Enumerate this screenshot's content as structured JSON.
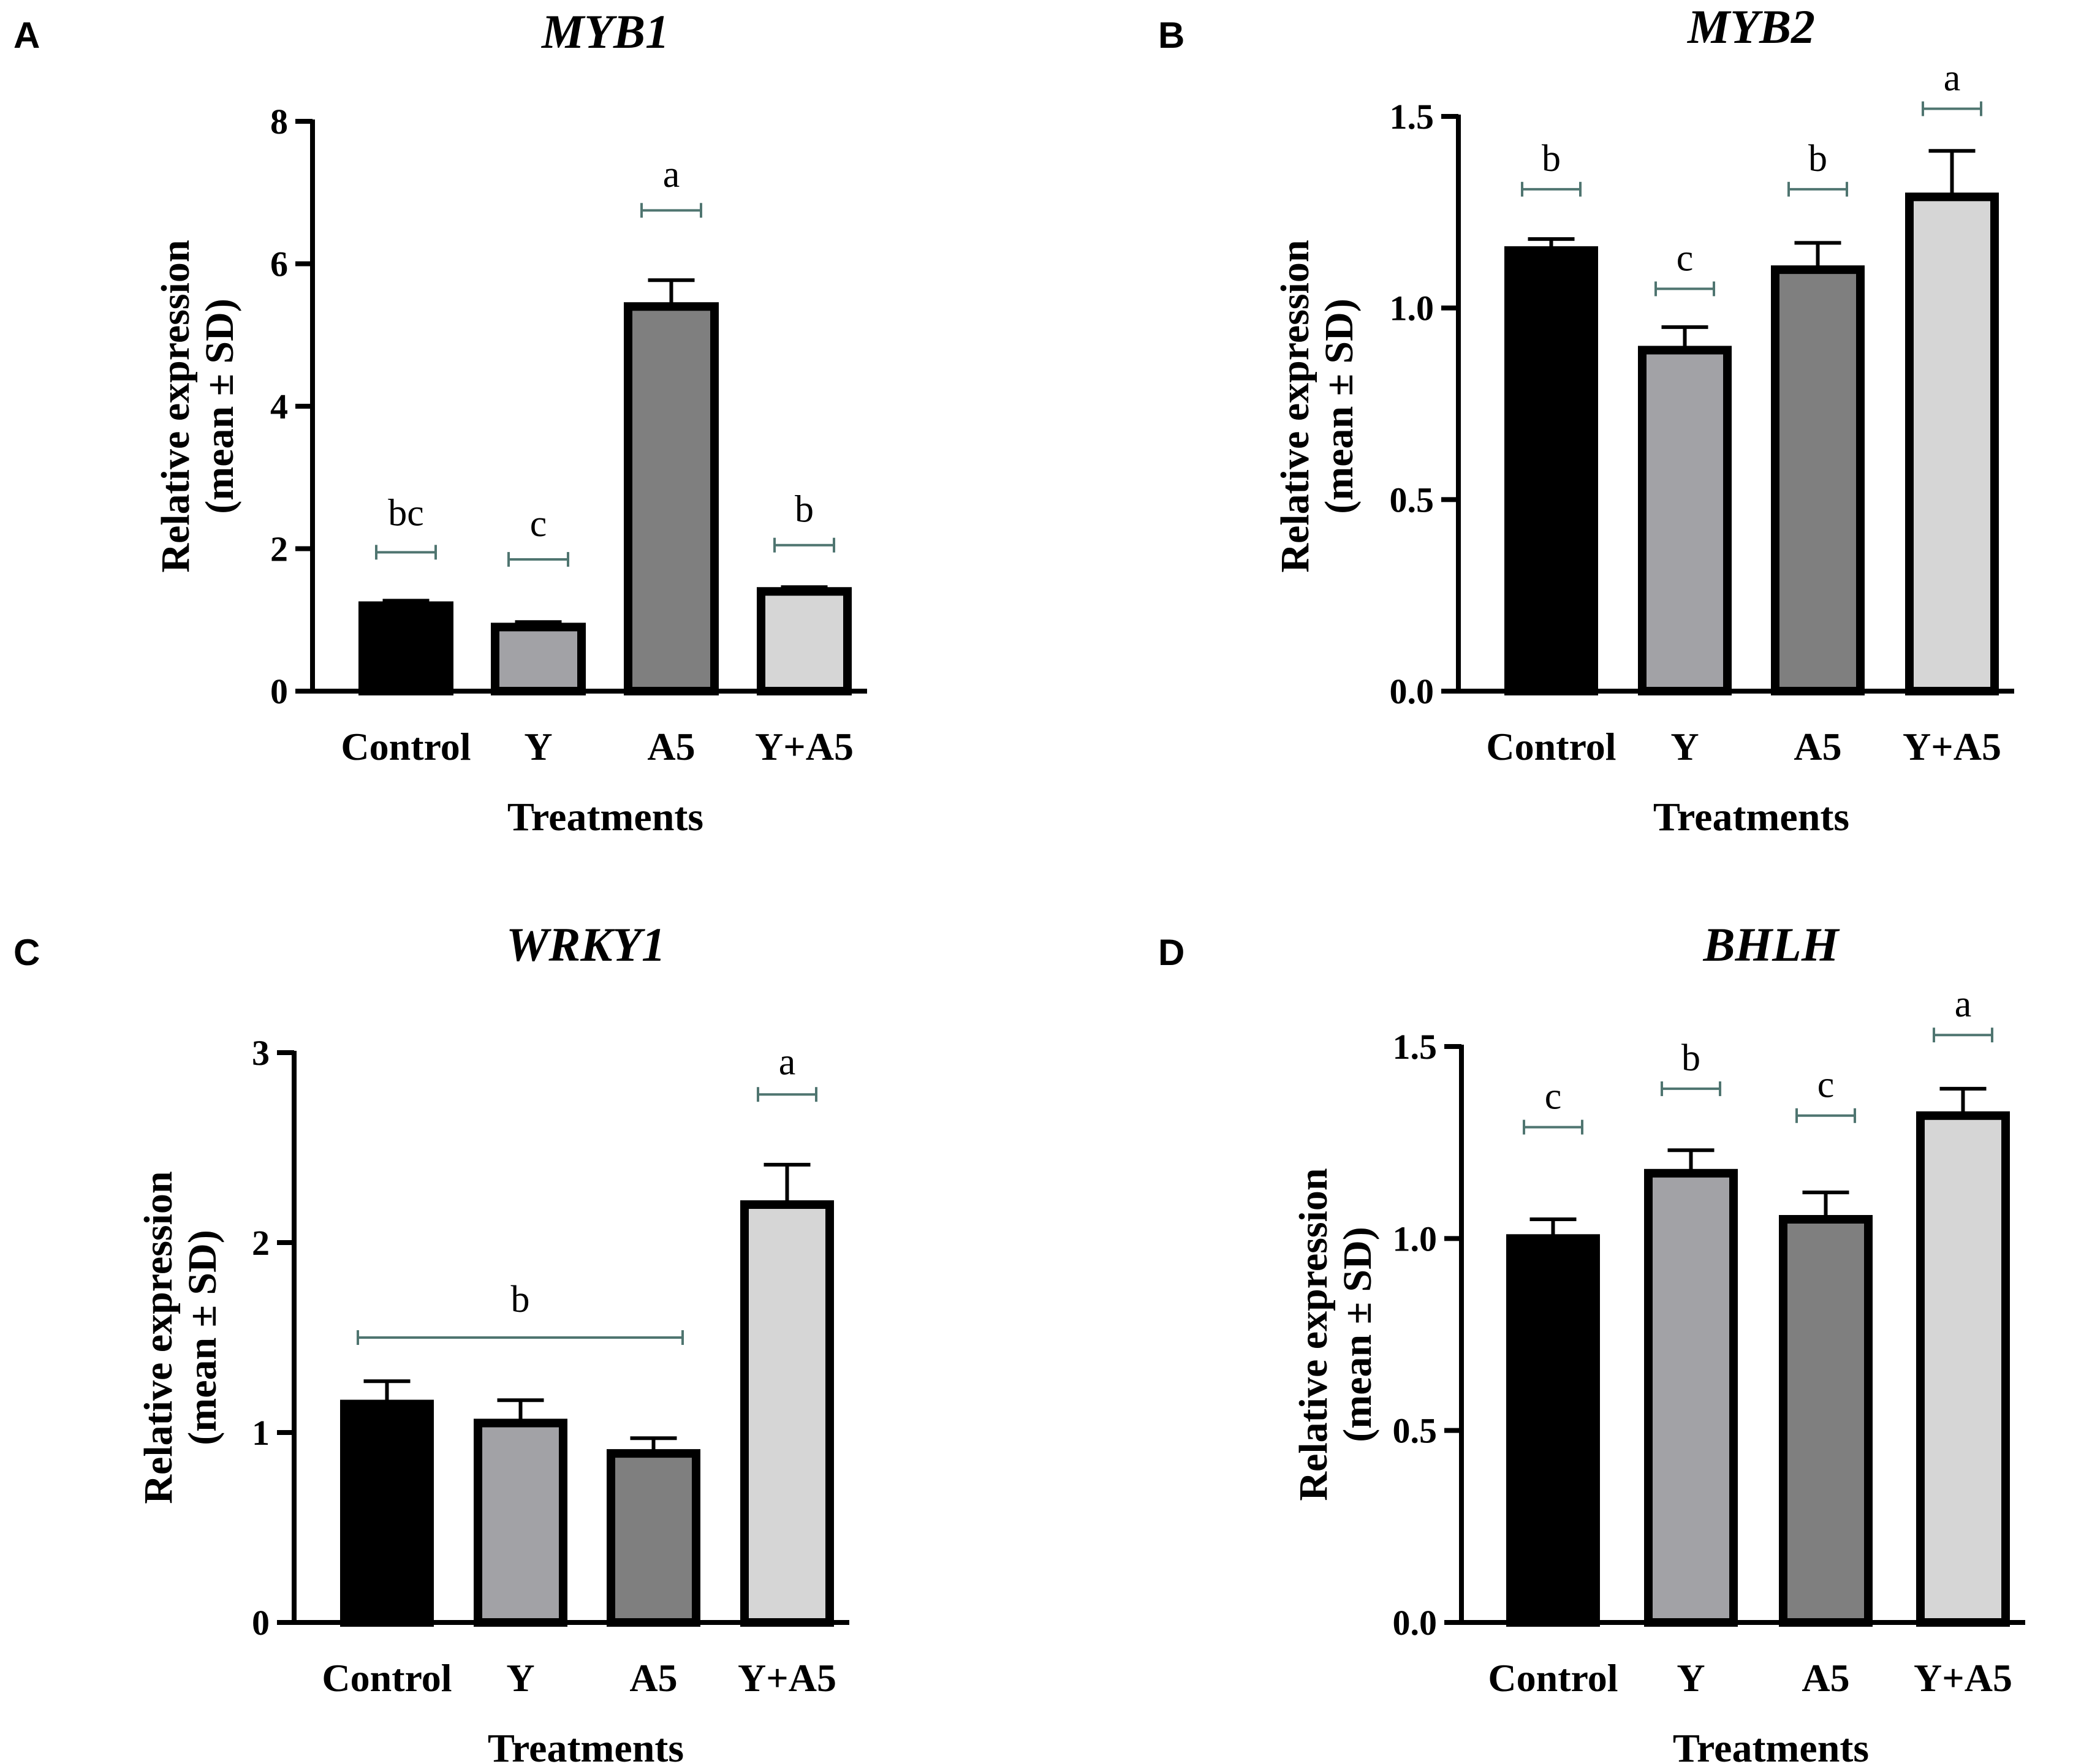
{
  "colors": {
    "axis": "#000000",
    "bracket": "#4f7570",
    "bar_fills": [
      "#000000",
      "#a2a2a6",
      "#7f7f7f",
      "#d6d6d6"
    ]
  },
  "chart_data": [
    {
      "panel": "A",
      "type": "bar",
      "title": "MYB1",
      "categories": [
        "Control",
        "Y",
        "A5",
        "Y+A5"
      ],
      "values": [
        1.2,
        0.9,
        5.4,
        1.4
      ],
      "errors": [
        0.07,
        0.07,
        0.37,
        0.06
      ],
      "xlabel": "Treatments",
      "ylabel_line1": "Relative expression",
      "ylabel_line2": "(mean ± SD)",
      "ylim": [
        0,
        8
      ],
      "yticks": [
        0,
        2,
        4,
        6,
        8
      ],
      "ytick_labels": [
        "0",
        "2",
        "4",
        "6",
        "8"
      ],
      "significance": [
        {
          "label": "bc",
          "from": 0,
          "to": 0,
          "level": 1.95,
          "text_level": 2.5
        },
        {
          "label": "c",
          "from": 1,
          "to": 1,
          "level": 1.85,
          "text_level": 2.35
        },
        {
          "label": "a",
          "from": 2,
          "to": 2,
          "level": 6.75,
          "text_level": 7.25
        },
        {
          "label": "b",
          "from": 3,
          "to": 3,
          "level": 2.05,
          "text_level": 2.55
        }
      ]
    },
    {
      "panel": "B",
      "type": "bar",
      "title": "MYB2",
      "categories": [
        "Control",
        "Y",
        "A5",
        "Y+A5"
      ],
      "values": [
        1.15,
        0.89,
        1.1,
        1.29
      ],
      "errors": [
        0.03,
        0.06,
        0.07,
        0.12
      ],
      "xlabel": "Treatments",
      "ylabel_line1": "Relative expression",
      "ylabel_line2": "(mean ± SD)",
      "ylim": [
        0,
        1.5
      ],
      "yticks": [
        0,
        0.5,
        1.0,
        1.5
      ],
      "ytick_labels": [
        "0.0",
        "0.5",
        "1.0",
        "1.5"
      ],
      "significance": [
        {
          "label": "b",
          "from": 0,
          "to": 0,
          "level": 1.31,
          "text_level": 1.39
        },
        {
          "label": "c",
          "from": 1,
          "to": 1,
          "level": 1.05,
          "text_level": 1.13
        },
        {
          "label": "b",
          "from": 2,
          "to": 2,
          "level": 1.31,
          "text_level": 1.39
        },
        {
          "label": "a",
          "from": 3,
          "to": 3,
          "level": 1.52,
          "text_level": 1.6
        }
      ]
    },
    {
      "panel": "C",
      "type": "bar",
      "title": "WRKY1",
      "categories": [
        "Control",
        "Y",
        "A5",
        "Y+A5"
      ],
      "values": [
        1.15,
        1.05,
        0.89,
        2.2
      ],
      "errors": [
        0.12,
        0.12,
        0.08,
        0.21
      ],
      "xlabel": "Treatments",
      "ylabel_line1": "Relative expression",
      "ylabel_line2": "(mean ± SD)",
      "ylim": [
        0,
        3
      ],
      "yticks": [
        0,
        1,
        2,
        3
      ],
      "ytick_labels": [
        "0",
        "1",
        "2",
        "3"
      ],
      "significance": [
        {
          "label": "b",
          "from": 0,
          "to": 2,
          "level": 1.5,
          "text_level": 1.7
        },
        {
          "label": "a",
          "from": 3,
          "to": 3,
          "level": 2.78,
          "text_level": 2.95
        }
      ]
    },
    {
      "panel": "D",
      "type": "bar",
      "title": "BHLH",
      "categories": [
        "Control",
        "Y",
        "A5",
        "Y+A5"
      ],
      "values": [
        1.0,
        1.17,
        1.05,
        1.32
      ],
      "errors": [
        0.05,
        0.06,
        0.07,
        0.07
      ],
      "xlabel": "Treatments",
      "ylabel_line1": "Relative expression",
      "ylabel_line2": "(mean ± SD)",
      "ylim": [
        0,
        1.5
      ],
      "yticks": [
        0,
        0.5,
        1.0,
        1.5
      ],
      "ytick_labels": [
        "0.0",
        "0.5",
        "1.0",
        "1.5"
      ],
      "significance": [
        {
          "label": "c",
          "from": 0,
          "to": 0,
          "level": 1.29,
          "text_level": 1.37
        },
        {
          "label": "b",
          "from": 1,
          "to": 1,
          "level": 1.39,
          "text_level": 1.47
        },
        {
          "label": "c",
          "from": 2,
          "to": 2,
          "level": 1.32,
          "text_level": 1.4
        },
        {
          "label": "a",
          "from": 3,
          "to": 3,
          "level": 1.53,
          "text_level": 1.61
        }
      ]
    }
  ]
}
